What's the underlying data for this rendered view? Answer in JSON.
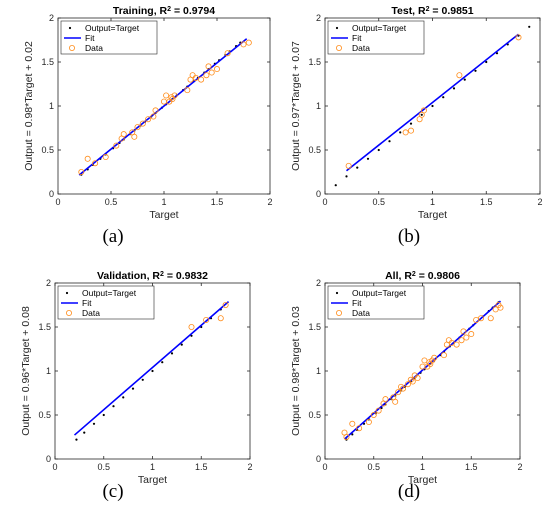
{
  "chart_data": [
    {
      "type": "scatter",
      "title": "Training, R",
      "title_sup": "2",
      "title_value": " = 0.9794",
      "xlabel": "Target",
      "ylabel": "Output = 0.98*Target + 0.02",
      "xlim": [
        0,
        2
      ],
      "ylim": [
        0,
        2
      ],
      "xticks": [
        "0",
        "0.5",
        "1",
        "1.5",
        "2"
      ],
      "yticks": [
        "0",
        "0.5",
        "1",
        "1.5",
        "2"
      ],
      "legend_position": "top-left",
      "subfigure_label": "(a)",
      "fit": {
        "slope": 0.98,
        "intercept": 0.02,
        "x": [
          0.2,
          1.78
        ]
      },
      "series": [
        {
          "name": "Output=Target",
          "marker": "dot",
          "color": "#000000",
          "x": [
            0.22,
            0.28,
            0.33,
            0.4,
            0.45,
            0.52,
            0.58,
            0.62,
            0.68,
            0.72,
            0.78,
            0.82,
            0.88,
            0.92,
            0.98,
            1.02,
            1.08,
            1.12,
            1.18,
            1.22,
            1.28,
            1.32,
            1.38,
            1.42,
            1.48,
            1.52,
            1.58,
            1.62,
            1.68,
            1.72
          ]
        },
        {
          "name": "Fit",
          "marker": "line",
          "color": "#0000ff"
        },
        {
          "name": "Data",
          "marker": "circle",
          "color": "#ff8c1a",
          "points": [
            [
              0.22,
              0.25
            ],
            [
              0.28,
              0.4
            ],
            [
              0.35,
              0.35
            ],
            [
              0.45,
              0.42
            ],
            [
              0.55,
              0.55
            ],
            [
              0.6,
              0.63
            ],
            [
              0.62,
              0.68
            ],
            [
              0.7,
              0.7
            ],
            [
              0.72,
              0.65
            ],
            [
              0.75,
              0.76
            ],
            [
              0.8,
              0.8
            ],
            [
              0.85,
              0.85
            ],
            [
              0.9,
              0.88
            ],
            [
              0.92,
              0.95
            ],
            [
              1.0,
              1.05
            ],
            [
              1.02,
              1.12
            ],
            [
              1.05,
              1.05
            ],
            [
              1.07,
              1.1
            ],
            [
              1.08,
              1.08
            ],
            [
              1.1,
              1.12
            ],
            [
              1.22,
              1.18
            ],
            [
              1.25,
              1.3
            ],
            [
              1.27,
              1.35
            ],
            [
              1.3,
              1.32
            ],
            [
              1.35,
              1.3
            ],
            [
              1.4,
              1.35
            ],
            [
              1.42,
              1.45
            ],
            [
              1.45,
              1.38
            ],
            [
              1.5,
              1.42
            ],
            [
              1.6,
              1.6
            ],
            [
              1.75,
              1.7
            ],
            [
              1.8,
              1.72
            ]
          ]
        }
      ]
    },
    {
      "type": "scatter",
      "title": "Test, R",
      "title_sup": "2",
      "title_value": " = 0.9851",
      "xlabel": "Target",
      "ylabel": "Output = 0.97*Target + 0.07",
      "xlim": [
        0,
        2
      ],
      "ylim": [
        0,
        2
      ],
      "xticks": [
        "0",
        "0.5",
        "1",
        "1.5",
        "2"
      ],
      "yticks": [
        "0",
        "0.5",
        "1",
        "1.5",
        "2"
      ],
      "legend_position": "top-left",
      "subfigure_label": "(b)",
      "fit": {
        "slope": 0.97,
        "intercept": 0.07,
        "x": [
          0.2,
          1.8
        ]
      },
      "series": [
        {
          "name": "Output=Target",
          "marker": "dot",
          "color": "#000000",
          "x": [
            0.1,
            0.2,
            0.3,
            0.4,
            0.5,
            0.6,
            0.7,
            0.8,
            0.9,
            1.0,
            1.1,
            1.2,
            1.3,
            1.4,
            1.5,
            1.6,
            1.7,
            1.8,
            1.9
          ]
        },
        {
          "name": "Fit",
          "marker": "line",
          "color": "#0000ff"
        },
        {
          "name": "Data",
          "marker": "circle",
          "color": "#ff8c1a",
          "points": [
            [
              0.22,
              0.32
            ],
            [
              0.75,
              0.7
            ],
            [
              0.8,
              0.72
            ],
            [
              0.88,
              0.85
            ],
            [
              0.9,
              0.9
            ],
            [
              0.92,
              0.95
            ],
            [
              1.25,
              1.35
            ],
            [
              1.8,
              1.78
            ]
          ]
        }
      ]
    },
    {
      "type": "scatter",
      "title": "Validation, R",
      "title_sup": "2",
      "title_value": " = 0.9832",
      "xlabel": "Target",
      "ylabel": "Output = 0.96*Target + 0.08",
      "xlim": [
        0,
        2
      ],
      "ylim": [
        0,
        2
      ],
      "xticks": [
        "0",
        "0.5",
        "1",
        "1.5",
        "2"
      ],
      "yticks": [
        "0",
        "0.5",
        "1",
        "1.5",
        "2"
      ],
      "legend_position": "top-left",
      "subfigure_label": "(c)",
      "fit": {
        "slope": 0.96,
        "intercept": 0.08,
        "x": [
          0.2,
          1.78
        ]
      },
      "series": [
        {
          "name": "Output=Target",
          "marker": "dot",
          "color": "#000000",
          "x": [
            0.22,
            0.3,
            0.4,
            0.5,
            0.6,
            0.7,
            0.8,
            0.9,
            1.0,
            1.1,
            1.2,
            1.3,
            1.4,
            1.5,
            1.6,
            1.7
          ]
        },
        {
          "name": "Fit",
          "marker": "line",
          "color": "#0000ff"
        },
        {
          "name": "Data",
          "marker": "circle",
          "color": "#ff8c1a",
          "points": [
            [
              1.4,
              1.5
            ],
            [
              1.55,
              1.58
            ],
            [
              1.7,
              1.6
            ],
            [
              1.75,
              1.75
            ]
          ]
        }
      ]
    },
    {
      "type": "scatter",
      "title": "All, R",
      "title_sup": "2",
      "title_value": " = 0.9806",
      "xlabel": "Target",
      "ylabel": "Output = 0.98*Target + 0.03",
      "xlim": [
        0,
        2
      ],
      "ylim": [
        0,
        2
      ],
      "xticks": [
        "0",
        "0.5",
        "1",
        "1.5",
        "2"
      ],
      "yticks": [
        "0",
        "0.5",
        "1",
        "1.5",
        "2"
      ],
      "legend_position": "top-left",
      "subfigure_label": "(d)",
      "fit": {
        "slope": 0.98,
        "intercept": 0.03,
        "x": [
          0.2,
          1.8
        ]
      },
      "series": [
        {
          "name": "Output=Target",
          "marker": "dot",
          "color": "#000000",
          "x": [
            0.22,
            0.28,
            0.33,
            0.4,
            0.45,
            0.52,
            0.58,
            0.62,
            0.68,
            0.72,
            0.78,
            0.82,
            0.88,
            0.92,
            0.98,
            1.02,
            1.08,
            1.12,
            1.18,
            1.22,
            1.28,
            1.32,
            1.38,
            1.42,
            1.48,
            1.52,
            1.58,
            1.62,
            1.68,
            1.72,
            1.78
          ]
        },
        {
          "name": "Fit",
          "marker": "line",
          "color": "#0000ff"
        },
        {
          "name": "Data",
          "marker": "circle",
          "color": "#ff8c1a",
          "points": [
            [
              0.2,
              0.3
            ],
            [
              0.22,
              0.25
            ],
            [
              0.28,
              0.4
            ],
            [
              0.35,
              0.35
            ],
            [
              0.45,
              0.42
            ],
            [
              0.5,
              0.5
            ],
            [
              0.55,
              0.55
            ],
            [
              0.6,
              0.63
            ],
            [
              0.62,
              0.68
            ],
            [
              0.7,
              0.7
            ],
            [
              0.72,
              0.65
            ],
            [
              0.75,
              0.76
            ],
            [
              0.78,
              0.82
            ],
            [
              0.8,
              0.8
            ],
            [
              0.85,
              0.85
            ],
            [
              0.88,
              0.9
            ],
            [
              0.9,
              0.88
            ],
            [
              0.92,
              0.95
            ],
            [
              0.95,
              0.92
            ],
            [
              1.0,
              1.05
            ],
            [
              1.02,
              1.12
            ],
            [
              1.05,
              1.05
            ],
            [
              1.07,
              1.1
            ],
            [
              1.08,
              1.08
            ],
            [
              1.1,
              1.12
            ],
            [
              1.12,
              1.15
            ],
            [
              1.22,
              1.18
            ],
            [
              1.25,
              1.3
            ],
            [
              1.27,
              1.35
            ],
            [
              1.3,
              1.32
            ],
            [
              1.35,
              1.3
            ],
            [
              1.4,
              1.35
            ],
            [
              1.42,
              1.45
            ],
            [
              1.45,
              1.38
            ],
            [
              1.5,
              1.42
            ],
            [
              1.55,
              1.58
            ],
            [
              1.6,
              1.6
            ],
            [
              1.7,
              1.6
            ],
            [
              1.75,
              1.7
            ],
            [
              1.78,
              1.75
            ],
            [
              1.8,
              1.72
            ]
          ]
        }
      ]
    }
  ]
}
